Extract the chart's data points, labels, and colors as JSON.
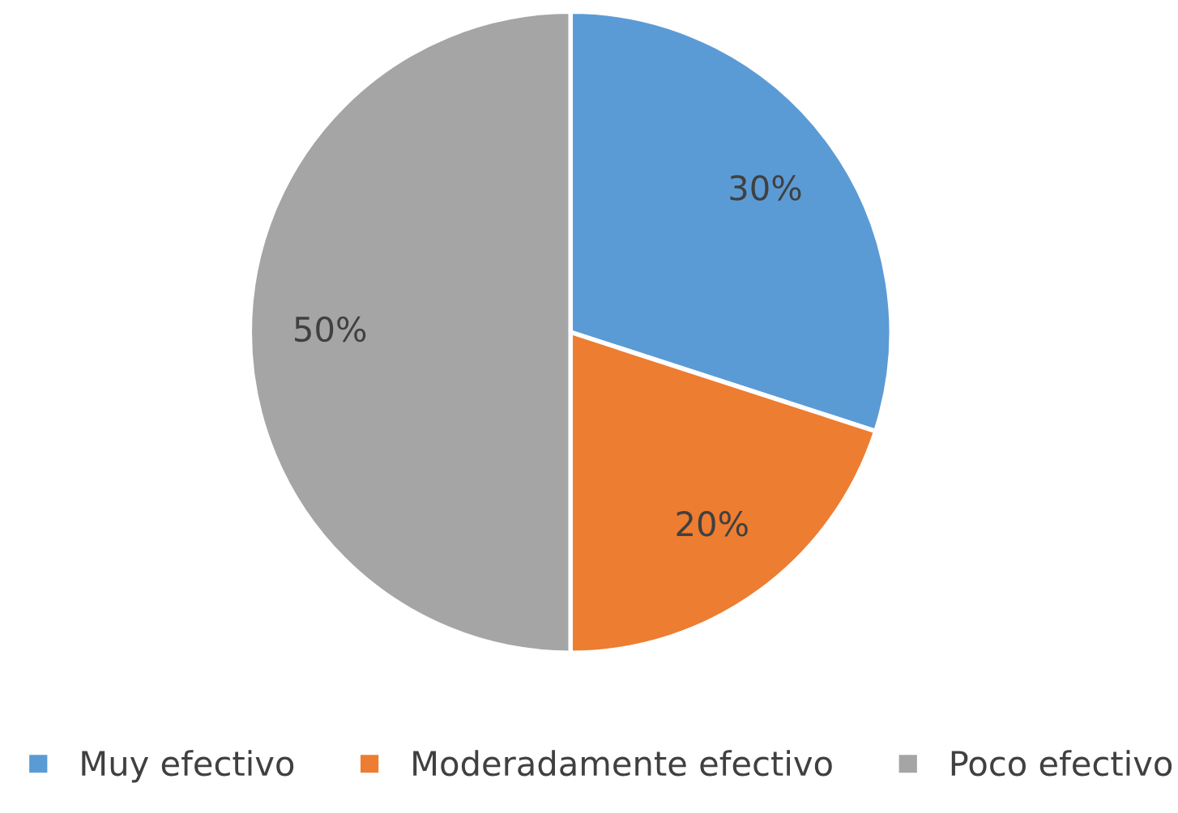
{
  "chart_data": {
    "type": "pie",
    "categories": [
      "Muy efectivo",
      "Moderadamente efectivo",
      "Poco efectivo"
    ],
    "values": [
      30,
      20,
      50
    ],
    "colors": [
      "#5b9bd5",
      "#ed7d31",
      "#a5a5a5"
    ],
    "value_labels": [
      "30%",
      "20%",
      "50%"
    ],
    "legend": "bottom"
  }
}
